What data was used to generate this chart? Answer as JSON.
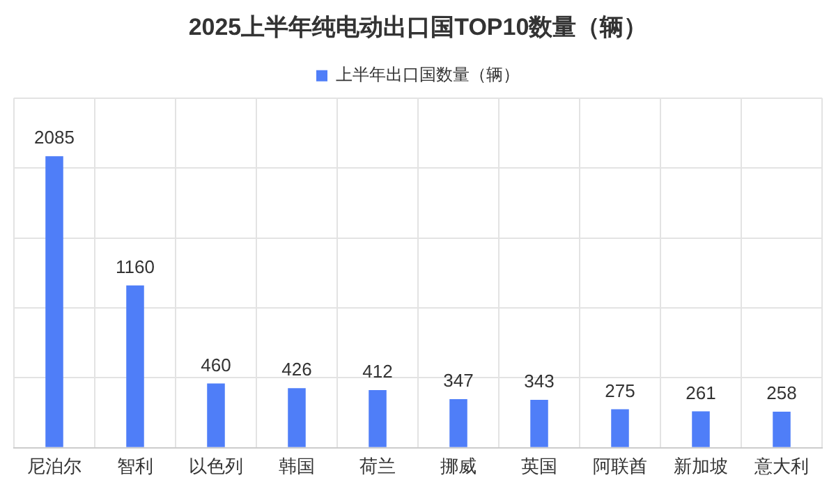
{
  "chart_data": {
    "type": "bar",
    "title": "2025上半年纯电动出口国TOP10数量（辆）",
    "categories": [
      "尼泊尔",
      "智利",
      "以色列",
      "韩国",
      "荷兰",
      "挪威",
      "英国",
      "阿联酋",
      "新加坡",
      "意大利"
    ],
    "series": [
      {
        "name": "上半年出口国数量（辆）",
        "color": "#4f7ef8",
        "values": [
          2085,
          1160,
          460,
          426,
          412,
          347,
          343,
          275,
          261,
          258
        ]
      }
    ],
    "ylim": [
      0,
      2500
    ],
    "yticks": [
      {
        "value": 0,
        "label": null
      },
      {
        "value": 500,
        "label": null
      },
      {
        "value": 1000,
        "label": null
      },
      {
        "value": 1500,
        "label": null
      },
      {
        "value": 2000,
        "label": null
      },
      {
        "value": 2500,
        "label": null
      }
    ],
    "tick_labels": "x",
    "grid": true,
    "legend": "top",
    "data_labels": true
  }
}
